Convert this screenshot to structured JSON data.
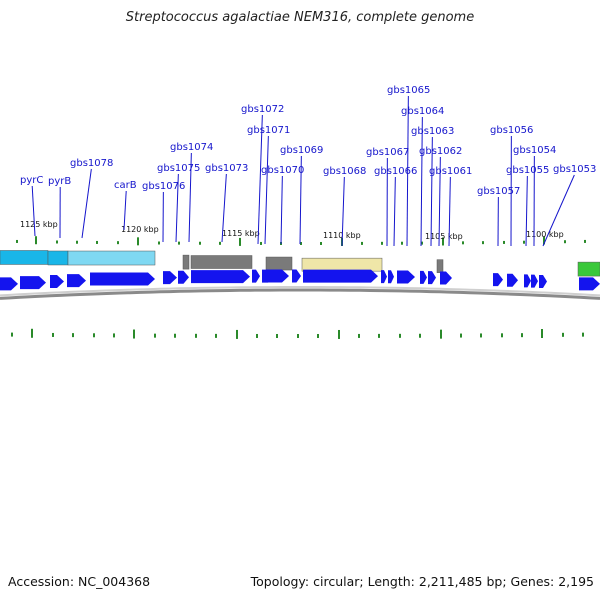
{
  "title": "Streptococcus agalactiae NEM316, complete genome",
  "footer": {
    "accession": "Accession: NC_004368",
    "topology": "Topology: circular; Length: 2,211,485 bp; Genes: 2,195"
  },
  "scale_labels": [
    "1125 kbp",
    "1120 kbp",
    "1115 kbp",
    "1110 kbp",
    "1105 kbp",
    "1100 kbp"
  ],
  "genes": [
    "pyrC",
    "pyrB",
    "gbs1078",
    "carB",
    "gbs1076",
    "gbs1075",
    "gbs1074",
    "gbs1073",
    "gbs1072",
    "gbs1071",
    "gbs1070",
    "gbs1069",
    "gbs1068",
    "gbs1067",
    "gbs1066",
    "gbs1065",
    "gbs1064",
    "gbs1063",
    "gbs1062",
    "gbs1061",
    "gbs1057",
    "gbs1056",
    "gbs1055",
    "gbs1054",
    "gbs1053"
  ],
  "colors": {
    "gene_label": "#1515cc",
    "cds_arrow": "#1414ee",
    "tick": "#2a8a2a",
    "cyan_band": "#19b6e8",
    "cyan_band_light": "#7fd8f2",
    "gray_band": "#7a7a7a",
    "yellow_band": "#efe6a8",
    "green_band": "#3ac83a",
    "backbone": "#8a8a8a"
  }
}
